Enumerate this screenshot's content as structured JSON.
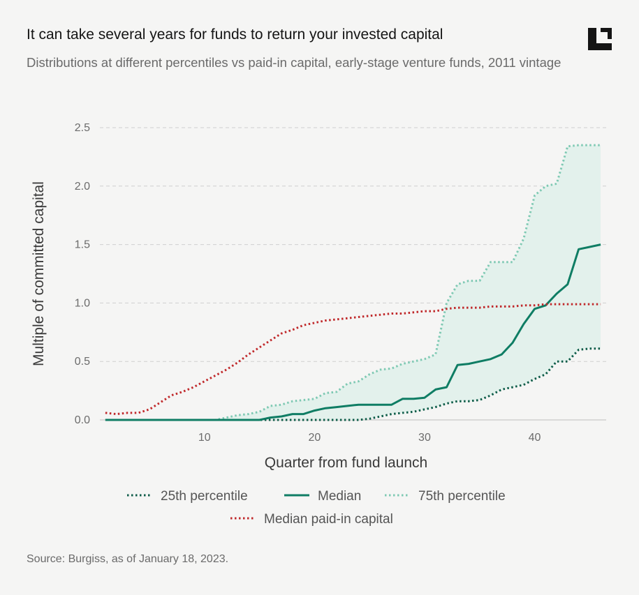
{
  "header": {
    "title": "It can take several years for funds to return your invested capital",
    "subtitle": "Distributions at different percentiles vs paid-in capital, early-stage venture funds, 2011 vintage"
  },
  "footer": {
    "source": "Source: Burgiss, as of January 18, 2023."
  },
  "logo": {
    "icon": "corner-bracket-logo-icon"
  },
  "colors": {
    "p25": "#0d5c48",
    "median": "#0f7d64",
    "p75": "#7ec9b3",
    "paid_in": "#c0292b",
    "band_fill": "#e3f1ec",
    "grid": "#cfcfcf"
  },
  "chart_data": {
    "type": "line",
    "title": "It can take several years for funds to return your invested capital",
    "subtitle": "Distributions at different percentiles vs paid-in capital, early-stage venture funds, 2011 vintage",
    "xlabel": "Quarter from fund launch",
    "ylabel": "Multiple of committed capital",
    "xlim": [
      0.5,
      46.5
    ],
    "ylim": [
      0,
      2.5
    ],
    "xticks": [
      10,
      20,
      30,
      40
    ],
    "yticks": [
      0.0,
      0.5,
      1.0,
      1.5,
      2.0,
      2.5
    ],
    "ytick_labels": [
      "0.0",
      "0.5",
      "1.0",
      "1.5",
      "2.0",
      "2.5"
    ],
    "grid": "horizontal dashed",
    "legend_position": "bottom",
    "shaded_band": "between 25th and 75th percentile",
    "x": [
      1,
      2,
      3,
      4,
      5,
      6,
      7,
      8,
      9,
      10,
      11,
      12,
      13,
      14,
      15,
      16,
      17,
      18,
      19,
      20,
      21,
      22,
      23,
      24,
      25,
      26,
      27,
      28,
      29,
      30,
      31,
      32,
      33,
      34,
      35,
      36,
      37,
      38,
      39,
      40,
      41,
      42,
      43,
      44,
      45,
      46
    ],
    "series": [
      {
        "name": "25th percentile",
        "style": "dotted",
        "values": [
          0,
          0,
          0,
          0,
          0,
          0,
          0,
          0,
          0,
          0,
          0,
          0,
          0,
          0,
          0,
          0,
          0,
          0,
          0,
          0,
          0,
          0,
          0,
          0,
          0.01,
          0.03,
          0.05,
          0.06,
          0.07,
          0.09,
          0.11,
          0.14,
          0.16,
          0.16,
          0.17,
          0.21,
          0.26,
          0.28,
          0.3,
          0.35,
          0.39,
          0.5,
          0.5,
          0.6,
          0.61,
          0.61
        ]
      },
      {
        "name": "Median",
        "style": "solid",
        "values": [
          0,
          0,
          0,
          0,
          0,
          0,
          0,
          0,
          0,
          0,
          0,
          0,
          0,
          0,
          0,
          0.02,
          0.03,
          0.05,
          0.05,
          0.08,
          0.1,
          0.11,
          0.12,
          0.13,
          0.13,
          0.13,
          0.13,
          0.18,
          0.18,
          0.19,
          0.26,
          0.28,
          0.47,
          0.48,
          0.5,
          0.52,
          0.56,
          0.66,
          0.82,
          0.95,
          0.98,
          1.08,
          1.16,
          1.46,
          1.48,
          1.5
        ]
      },
      {
        "name": "75th percentile",
        "style": "dotted",
        "values": [
          0,
          0,
          0,
          0,
          0,
          0,
          0,
          0,
          0,
          0,
          0,
          0.02,
          0.04,
          0.05,
          0.07,
          0.12,
          0.13,
          0.16,
          0.17,
          0.18,
          0.23,
          0.24,
          0.31,
          0.33,
          0.39,
          0.43,
          0.44,
          0.48,
          0.5,
          0.52,
          0.56,
          1.0,
          1.16,
          1.19,
          1.19,
          1.35,
          1.35,
          1.35,
          1.55,
          1.92,
          2.0,
          2.02,
          2.34,
          2.35,
          2.35,
          2.35
        ]
      },
      {
        "name": "Median paid-in capital",
        "style": "dotted",
        "values": [
          0.06,
          0.05,
          0.06,
          0.06,
          0.09,
          0.15,
          0.21,
          0.24,
          0.28,
          0.33,
          0.38,
          0.43,
          0.49,
          0.56,
          0.62,
          0.68,
          0.74,
          0.77,
          0.81,
          0.83,
          0.85,
          0.86,
          0.87,
          0.88,
          0.89,
          0.9,
          0.91,
          0.91,
          0.92,
          0.93,
          0.93,
          0.95,
          0.96,
          0.96,
          0.96,
          0.97,
          0.97,
          0.97,
          0.98,
          0.98,
          0.99,
          0.99,
          0.99,
          0.99,
          0.99,
          0.99
        ]
      }
    ]
  }
}
